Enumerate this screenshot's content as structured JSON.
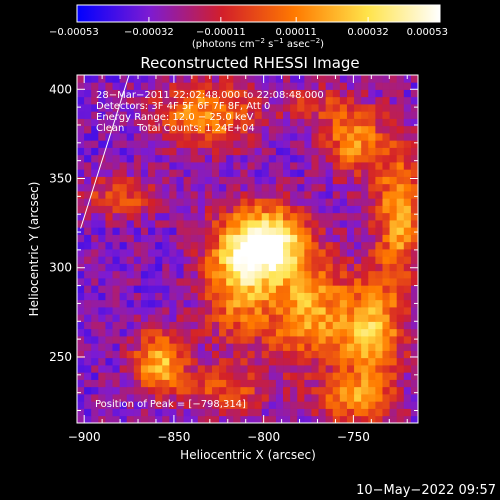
{
  "chart_data": {
    "type": "heatmap",
    "title": "Reconstructed RHESSI Image",
    "xlabel": "Heliocentric X (arcsec)",
    "ylabel": "Heliocentric Y (arcsec)",
    "xlim": [
      -904,
      -714
    ],
    "ylim": [
      213,
      408
    ],
    "xticks": [
      -900,
      -850,
      -800,
      -750
    ],
    "xtick_labels": [
      "−900",
      "−850",
      "−800",
      "−750"
    ],
    "yticks": [
      250,
      300,
      350,
      400
    ],
    "ytick_labels": [
      "250",
      "300",
      "350",
      "400"
    ],
    "colorbar": {
      "range": [
        -0.00053,
        0.00053
      ],
      "ticks": [
        -0.00053,
        -0.00032,
        -0.00011,
        0.00011,
        0.00032,
        0.00053
      ],
      "tick_labels": [
        "−0.00053",
        "−0.00032",
        "−0.00011",
        "0.00011",
        "0.00032",
        "0.00053"
      ],
      "unit_label": [
        "(photons cm",
        "−2",
        " s",
        "−1",
        " asec",
        "−2",
        ")"
      ],
      "colors": [
        "#0000ff",
        "#7d1bd2",
        "#d21f2a",
        "#ff7a00",
        "#ffe34a",
        "#ffffff"
      ]
    },
    "annotations": [
      "28−Mar−2011 22:02:48.000 to 22:08:48.000",
      "Detectors: 3F 4F 5F 6F 7F 8F, Att 0",
      "Energy Range: 12.0 − 25.0 keV",
      "Clean    Total Counts: 1.24E+04"
    ],
    "peak_label": "Position of Peak = [−798,314]",
    "peak": [
      -798,
      314
    ],
    "sources": [
      {
        "x": -798,
        "y": 314,
        "amp": 1.0,
        "sx": 16,
        "sy": 14
      },
      {
        "x": -815,
        "y": 290,
        "amp": 0.55,
        "sx": 14,
        "sy": 22
      },
      {
        "x": -775,
        "y": 275,
        "amp": 0.6,
        "sx": 16,
        "sy": 20
      },
      {
        "x": -740,
        "y": 262,
        "amp": 0.65,
        "sx": 12,
        "sy": 22
      },
      {
        "x": -725,
        "y": 330,
        "amp": 0.6,
        "sx": 9,
        "sy": 28
      },
      {
        "x": -750,
        "y": 372,
        "amp": 0.55,
        "sx": 11,
        "sy": 14
      },
      {
        "x": -832,
        "y": 386,
        "amp": 0.55,
        "sx": 20,
        "sy": 12
      },
      {
        "x": -858,
        "y": 248,
        "amp": 0.65,
        "sx": 10,
        "sy": 12
      },
      {
        "x": -822,
        "y": 232,
        "amp": 0.35,
        "sx": 18,
        "sy": 10
      },
      {
        "x": -880,
        "y": 340,
        "amp": 0.35,
        "sx": 16,
        "sy": 8
      },
      {
        "x": -750,
        "y": 226,
        "amp": 0.45,
        "sx": 14,
        "sy": 9
      },
      {
        "x": -772,
        "y": 392,
        "amp": 0.25,
        "sx": 12,
        "sy": 8
      }
    ],
    "limb_line": {
      "x": [
        -875,
        -902
      ],
      "y": [
        408,
        322
      ]
    }
  },
  "timestamp": "10−May−2022 09:57"
}
